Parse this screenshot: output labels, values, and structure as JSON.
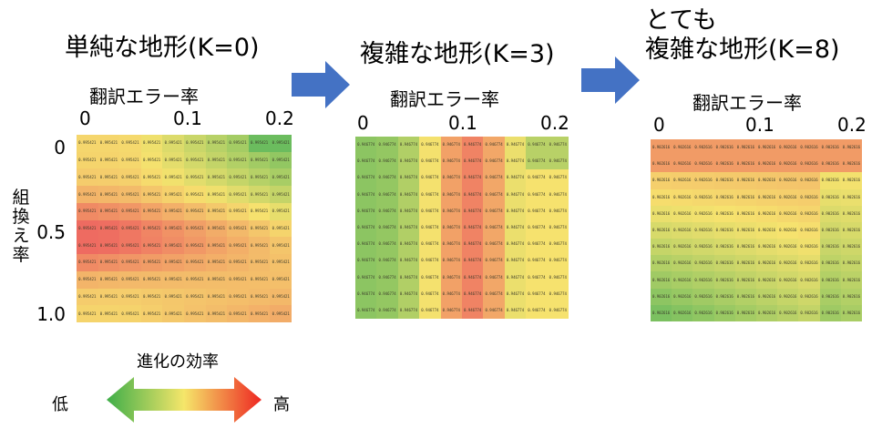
{
  "panels": [
    {
      "title_lines": [
        "単純な地形(K=0)"
      ],
      "x_axis_title": "翻訳エラー率",
      "x_ticks": [
        "0",
        "0.1",
        "0.2"
      ],
      "y_axis_title": "組換え率",
      "y_ticks": [
        "0",
        "0.5",
        "1.0"
      ],
      "rows": 11,
      "cols": 10,
      "cell_value": "0.995421"
    },
    {
      "title_lines": [
        "複雑な地形(K=3)"
      ],
      "x_axis_title": "翻訳エラー率",
      "x_ticks": [
        "0",
        "0.1",
        "0.2"
      ],
      "rows": 11,
      "cols": 10,
      "cell_value": "0.946774"
    },
    {
      "title_lines": [
        "とても",
        "複雑な地形(K=8)"
      ],
      "x_axis_title": "翻訳エラー率",
      "x_ticks": [
        "0",
        "0.1",
        "0.2"
      ],
      "rows": 11,
      "cols": 10,
      "cell_value": "0.902616"
    }
  ],
  "legend": {
    "title": "進化の効率",
    "low": "低",
    "high": "高",
    "colors": {
      "low": "#3fae49",
      "mid": "#f5e66a",
      "high": "#ee2722"
    }
  },
  "arrow_color": "#4472c4"
}
